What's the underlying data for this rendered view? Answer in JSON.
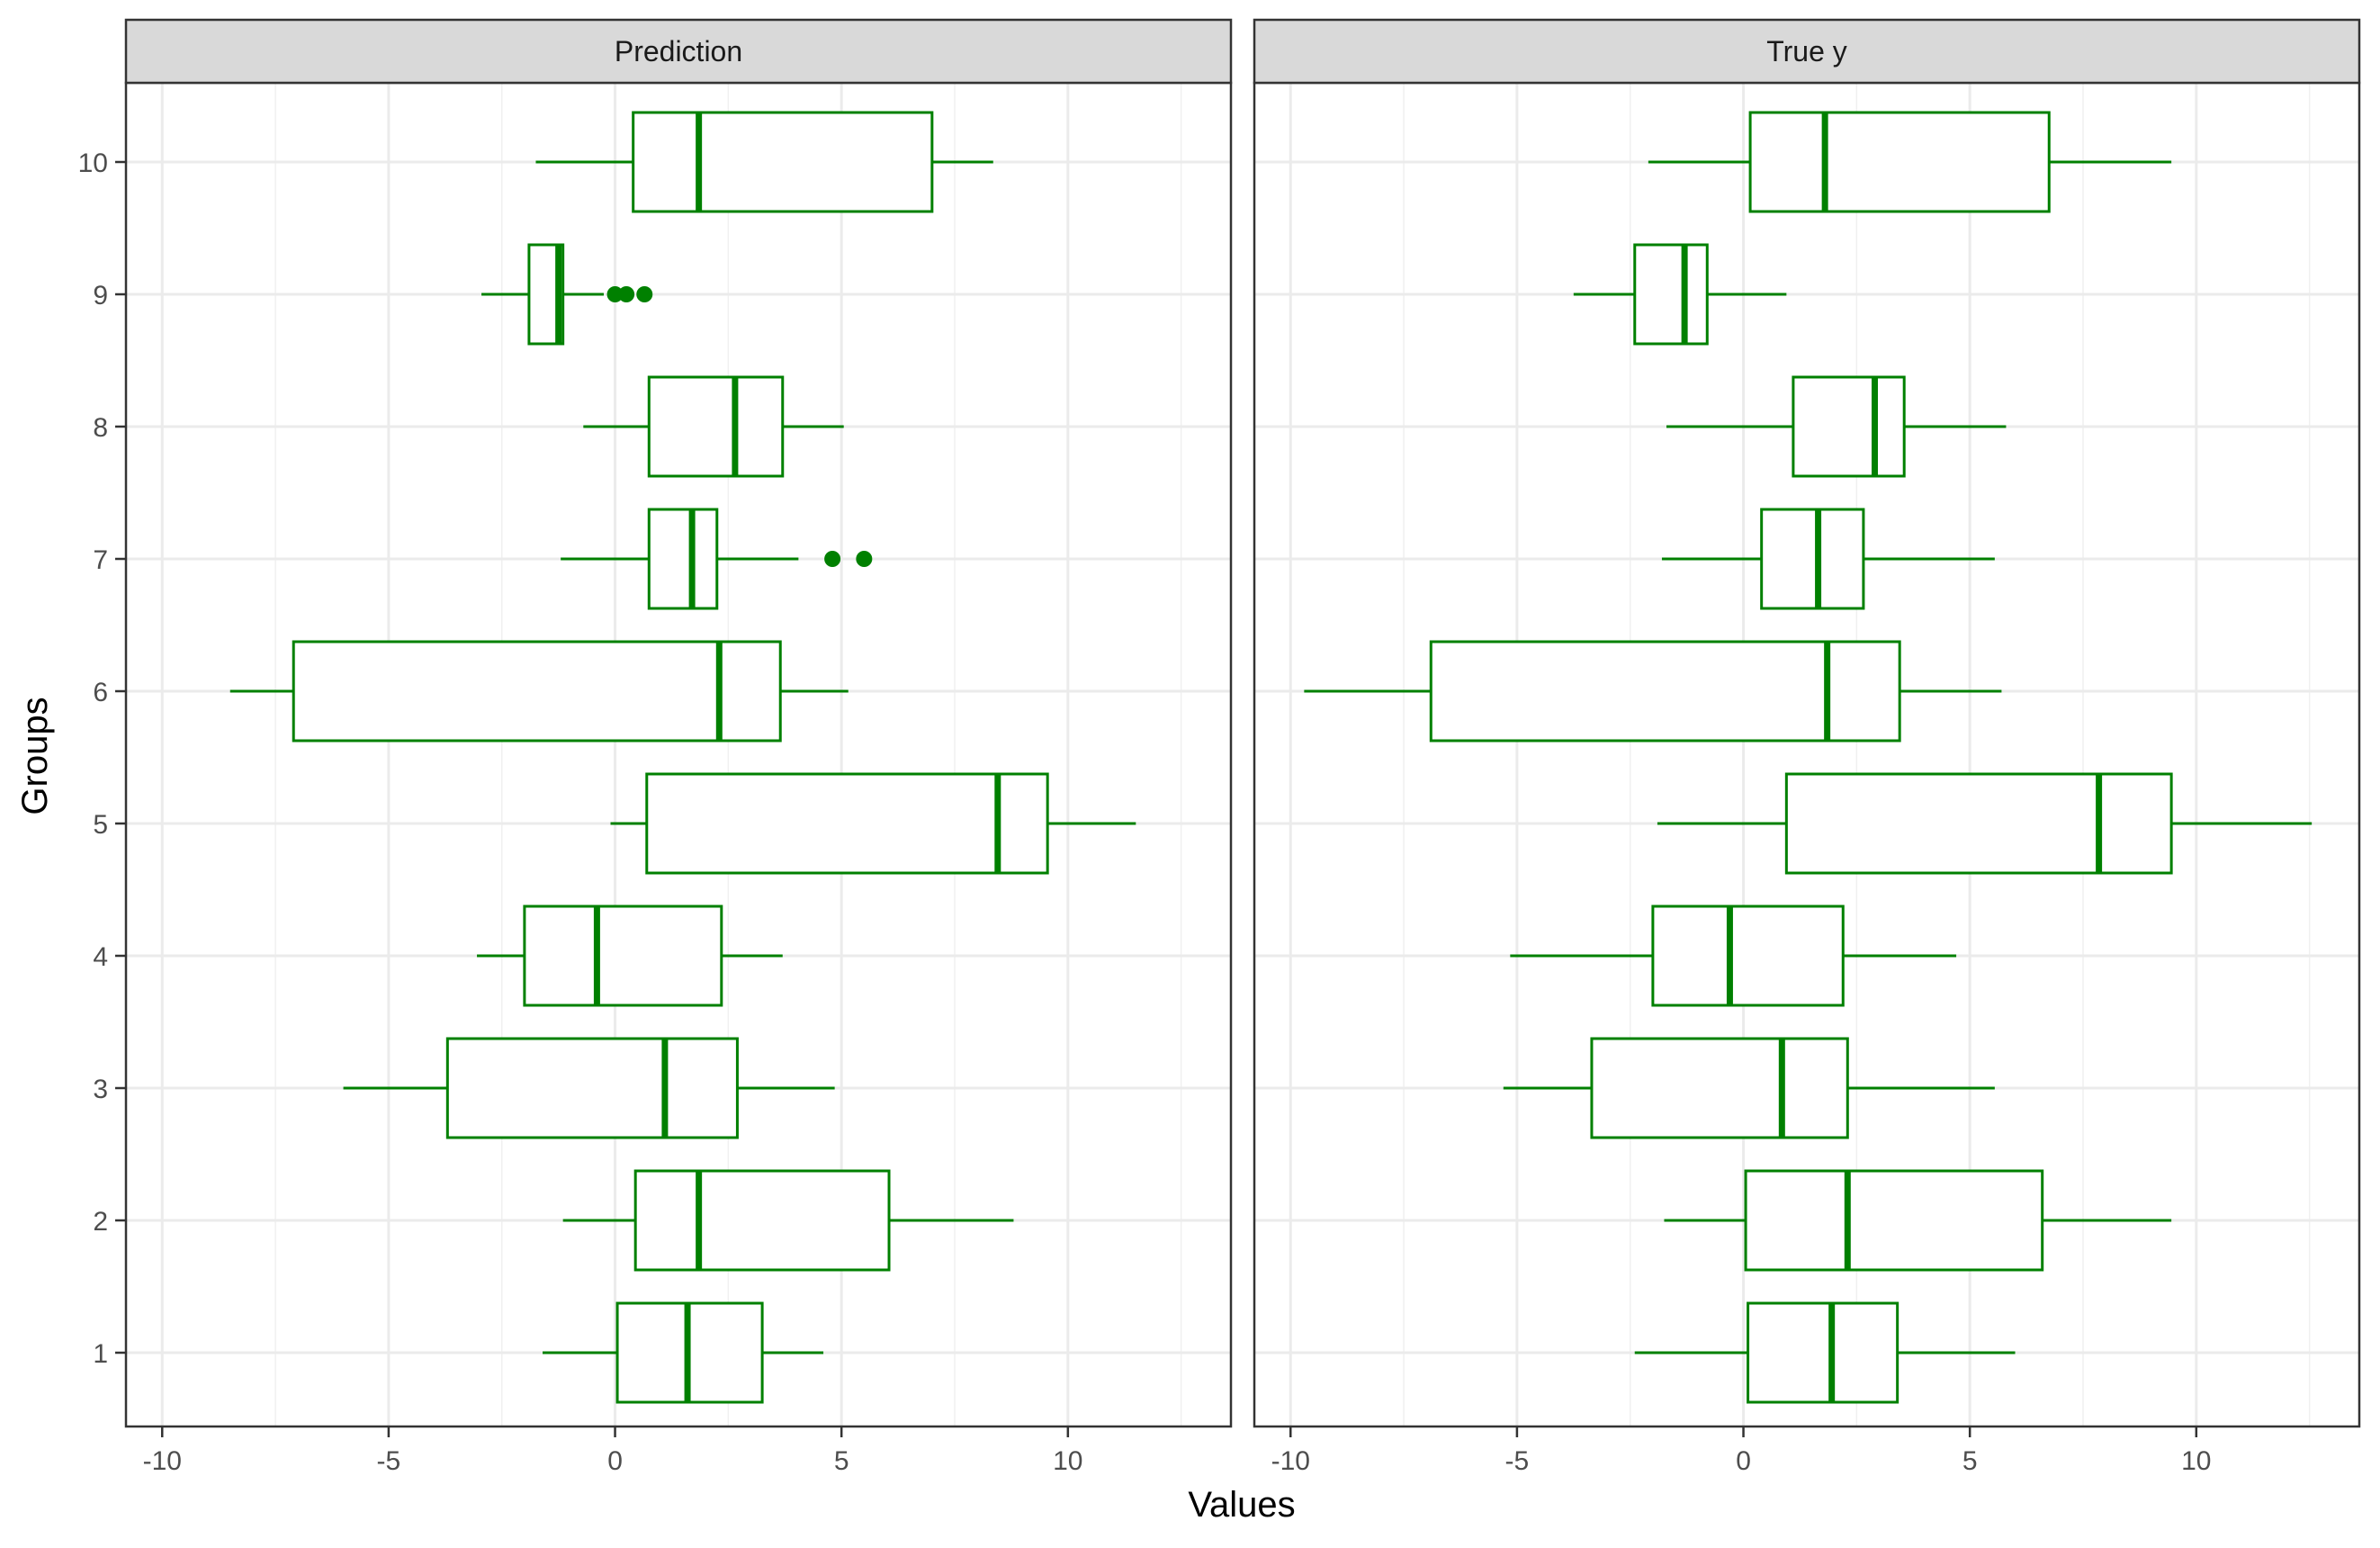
{
  "chart_data": {
    "type": "boxplot",
    "orientation": "horizontal",
    "xlabel": "Values",
    "ylabel": "Groups",
    "categories": [
      "1",
      "2",
      "3",
      "4",
      "5",
      "6",
      "7",
      "8",
      "9",
      "10"
    ],
    "x_ticks": [
      "-10",
      "-5",
      "0",
      "5",
      "10"
    ],
    "x_tick_values": [
      -10,
      -5,
      0,
      5,
      10
    ],
    "box_color": "#008000",
    "grid": true,
    "panels": [
      {
        "strip": "Prediction",
        "xlim": [
          -10.8,
          13.6
        ],
        "boxes": [
          {
            "group": "1",
            "whisker_low": -1.6,
            "q1": 0.05,
            "median": 1.6,
            "q3": 3.25,
            "whisker_high": 4.6,
            "outliers": []
          },
          {
            "group": "2",
            "whisker_low": -1.15,
            "q1": 0.45,
            "median": 1.85,
            "q3": 6.05,
            "whisker_high": 8.8,
            "outliers": []
          },
          {
            "group": "3",
            "whisker_low": -6.0,
            "q1": -3.7,
            "median": 1.1,
            "q3": 2.7,
            "whisker_high": 4.85,
            "outliers": []
          },
          {
            "group": "4",
            "whisker_low": -3.05,
            "q1": -2.0,
            "median": -0.4,
            "q3": 2.35,
            "whisker_high": 3.7,
            "outliers": []
          },
          {
            "group": "5",
            "whisker_low": -0.1,
            "q1": 0.7,
            "median": 8.45,
            "q3": 9.55,
            "whisker_high": 11.5,
            "outliers": []
          },
          {
            "group": "6",
            "whisker_low": -8.5,
            "q1": -7.1,
            "median": 2.3,
            "q3": 3.65,
            "whisker_high": 5.15,
            "outliers": []
          },
          {
            "group": "7",
            "whisker_low": -1.2,
            "q1": 0.75,
            "median": 1.7,
            "q3": 2.25,
            "whisker_high": 4.05,
            "outliers": [
              4.8,
              5.5
            ]
          },
          {
            "group": "8",
            "whisker_low": -0.7,
            "q1": 0.75,
            "median": 2.65,
            "q3": 3.7,
            "whisker_high": 5.05,
            "outliers": []
          },
          {
            "group": "9",
            "whisker_low": -2.95,
            "q1": -1.9,
            "median": -1.25,
            "q3": -1.15,
            "whisker_high": -0.25,
            "outliers": [
              0.0,
              0.25,
              0.65
            ]
          },
          {
            "group": "10",
            "whisker_low": -1.75,
            "q1": 0.4,
            "median": 1.85,
            "q3": 7.0,
            "whisker_high": 8.35,
            "outliers": []
          }
        ]
      },
      {
        "strip": "True y",
        "xlim": [
          -10.8,
          13.6
        ],
        "boxes": [
          {
            "group": "1",
            "whisker_low": -2.4,
            "q1": 0.1,
            "median": 1.95,
            "q3": 3.4,
            "whisker_high": 6.0,
            "outliers": []
          },
          {
            "group": "2",
            "whisker_low": -1.75,
            "q1": 0.05,
            "median": 2.3,
            "q3": 6.6,
            "whisker_high": 9.45,
            "outliers": []
          },
          {
            "group": "3",
            "whisker_low": -5.3,
            "q1": -3.35,
            "median": 0.85,
            "q3": 2.3,
            "whisker_high": 5.55,
            "outliers": []
          },
          {
            "group": "4",
            "whisker_low": -5.15,
            "q1": -2.0,
            "median": -0.3,
            "q3": 2.2,
            "whisker_high": 4.7,
            "outliers": []
          },
          {
            "group": "5",
            "whisker_low": -1.9,
            "q1": 0.95,
            "median": 7.85,
            "q3": 9.45,
            "whisker_high": 12.55,
            "outliers": []
          },
          {
            "group": "6",
            "whisker_low": -9.7,
            "q1": -6.9,
            "median": 1.85,
            "q3": 3.45,
            "whisker_high": 5.7,
            "outliers": []
          },
          {
            "group": "7",
            "whisker_low": -1.8,
            "q1": 0.4,
            "median": 1.65,
            "q3": 2.65,
            "whisker_high": 5.55,
            "outliers": []
          },
          {
            "group": "8",
            "whisker_low": -1.7,
            "q1": 1.1,
            "median": 2.9,
            "q3": 3.55,
            "whisker_high": 5.8,
            "outliers": []
          },
          {
            "group": "9",
            "whisker_low": -3.75,
            "q1": -2.4,
            "median": -1.3,
            "q3": -0.8,
            "whisker_high": 0.95,
            "outliers": []
          },
          {
            "group": "10",
            "whisker_low": -2.1,
            "q1": 0.15,
            "median": 1.8,
            "q3": 6.75,
            "whisker_high": 9.45,
            "outliers": []
          }
        ]
      }
    ]
  }
}
